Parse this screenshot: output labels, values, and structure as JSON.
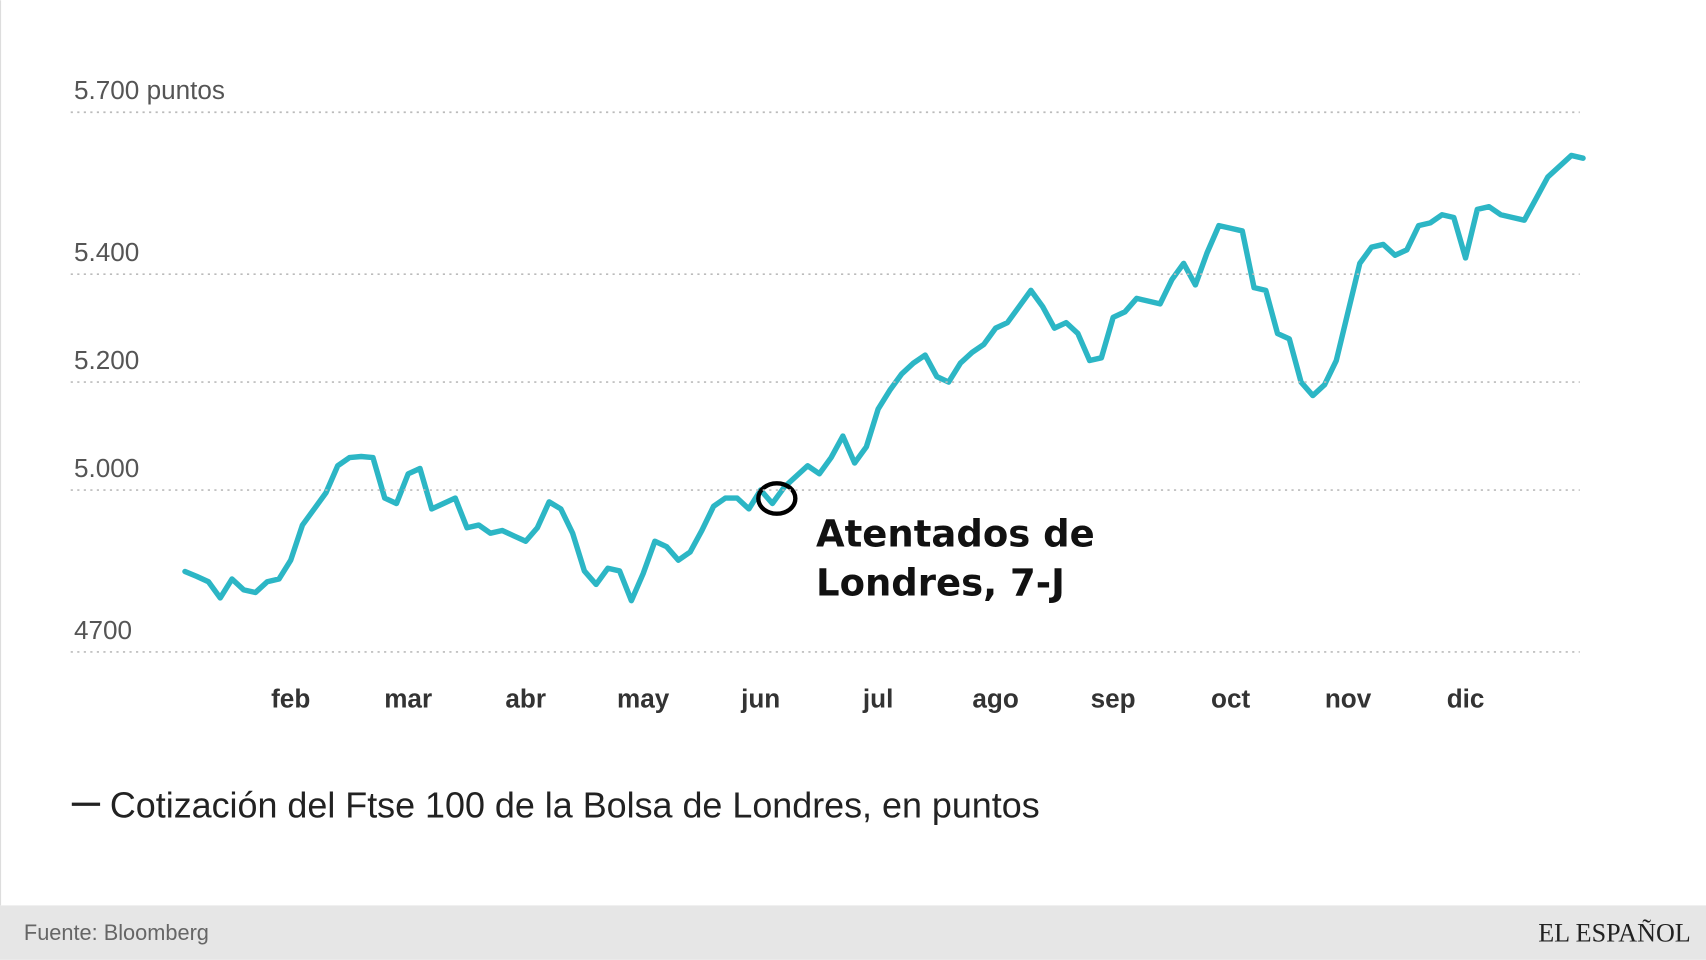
{
  "chart_data": {
    "type": "line",
    "categories": [
      null,
      null,
      null,
      null,
      null,
      null,
      null,
      null,
      null,
      "feb",
      null,
      null,
      null,
      null,
      null,
      null,
      null,
      null,
      null,
      "mar",
      null,
      null,
      null,
      null,
      null,
      null,
      null,
      null,
      null,
      "abr",
      null,
      null,
      null,
      null,
      null,
      null,
      null,
      null,
      null,
      "may",
      null,
      null,
      null,
      null,
      null,
      null,
      null,
      null,
      null,
      "jun",
      null,
      null,
      null,
      null,
      null,
      null,
      null,
      null,
      null,
      "jul",
      null,
      null,
      null,
      null,
      null,
      null,
      null,
      null,
      null,
      "ago",
      null,
      null,
      null,
      null,
      null,
      null,
      null,
      null,
      null,
      "sep",
      null,
      null,
      null,
      null,
      null,
      null,
      null,
      null,
      null,
      "oct",
      null,
      null,
      null,
      null,
      null,
      null,
      null,
      null,
      null,
      "nov",
      null,
      null,
      null,
      null,
      null,
      null,
      null,
      null,
      null,
      "dic",
      null,
      null,
      null,
      null,
      null,
      null,
      null,
      null,
      null,
      null
    ],
    "series": [
      {
        "name": "Cotización del Ftse 100 de la Bolsa de Londres, en puntos",
        "color": "#2cb6c5",
        "values": [
          4849,
          4840,
          4830,
          4800,
          4835,
          4815,
          4810,
          4830,
          4835,
          4870,
          4935,
          4965,
          4995,
          5045,
          5060,
          5062,
          5060,
          4985,
          4975,
          5030,
          5040,
          4965,
          4975,
          4985,
          4930,
          4935,
          4920,
          4925,
          4915,
          4905,
          4930,
          4978,
          4965,
          4920,
          4850,
          4825,
          4855,
          4850,
          4795,
          4845,
          4905,
          4895,
          4870,
          4885,
          4925,
          4970,
          4985,
          4985,
          4965,
          5000,
          4975,
          5005,
          5025,
          5045,
          5030,
          5060,
          5100,
          5050,
          5080,
          5150,
          5185,
          5215,
          5235,
          5250,
          5210,
          5200,
          5235,
          5255,
          5270,
          5300,
          5310,
          5340,
          5370,
          5340,
          5300,
          5310,
          5290,
          5240,
          5245,
          5320,
          5330,
          5355,
          5350,
          5345,
          5390,
          5420,
          5380,
          5440,
          5490,
          5485,
          5480,
          5375,
          5370,
          5290,
          5280,
          5200,
          5175,
          5195,
          5240,
          5330,
          5420,
          5450,
          5455,
          5435,
          5445,
          5490,
          5495,
          5510,
          5505,
          5430,
          5520,
          5525,
          5510,
          5505,
          5500,
          5540,
          5580,
          5600,
          5620,
          5615
        ]
      }
    ],
    "ylim": [
      4700,
      5700
    ],
    "yticks": [
      4700,
      {
        "value": 5000,
        "label": "5.000"
      },
      {
        "value": 5200,
        "label": "5.200"
      },
      {
        "value": 5400,
        "label": "5.400"
      },
      {
        "value": 5700,
        "label": "5.700 puntos"
      }
    ],
    "grid": true,
    "annotation": [
      "Atentados de",
      "Londres, 7-J"
    ],
    "source": "Fuente: Bloomberg",
    "logo": "EL ESPAÑOL"
  }
}
